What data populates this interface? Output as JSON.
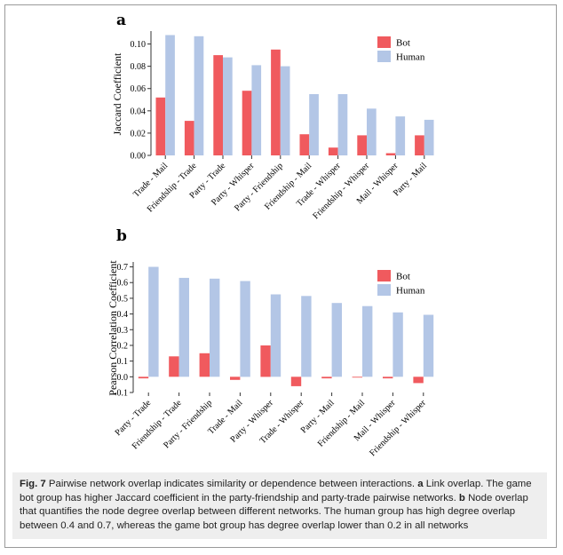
{
  "colors": {
    "bot": "#f05a5e",
    "human": "#b3c6e6"
  },
  "panels": {
    "a": "a",
    "b": "b"
  },
  "chart_data": [
    {
      "type": "bar",
      "ylabel": "Jaccard Coefficient",
      "ylim": [
        0,
        0.11
      ],
      "yticks": [
        "0.00",
        "0.02",
        "0.04",
        "0.06",
        "0.08",
        "0.10"
      ],
      "categories": [
        "Trade - Mail",
        "Friendship - Trade",
        "Party - Trade",
        "Party - Whisper",
        "Party - Friendship",
        "Friendship - Mail",
        "Trade - Whisper",
        "Friendship - Whisper",
        "Mail - Whisper",
        "Party - Mail"
      ],
      "series": [
        {
          "name": "Bot",
          "values": [
            0.052,
            0.031,
            0.09,
            0.058,
            0.095,
            0.019,
            0.007,
            0.018,
            0.002,
            0.018
          ]
        },
        {
          "name": "Human",
          "values": [
            0.108,
            0.107,
            0.088,
            0.081,
            0.08,
            0.055,
            0.055,
            0.042,
            0.035,
            0.032
          ]
        }
      ],
      "legend": "top-right"
    },
    {
      "type": "bar",
      "ylabel": "Pearson Correlation Coefficient",
      "ylim": [
        -0.1,
        0.72
      ],
      "yticks": [
        "-0.1",
        "0.0",
        "0.1",
        "0.2",
        "0.3",
        "0.4",
        "0.5",
        "0.6",
        "0.7"
      ],
      "categories": [
        "Party - Trade",
        "Friendship - Trade",
        "Party - Friendship",
        "Trade - Mail",
        "Party - Whisper",
        "Trade - Whisper",
        "Party - Mail",
        "Friendship - Mail",
        "Mail - Whisper",
        "Friendship - Whisper"
      ],
      "series": [
        {
          "name": "Bot",
          "values": [
            -0.01,
            0.13,
            0.15,
            -0.02,
            0.2,
            -0.06,
            -0.01,
            -0.005,
            -0.01,
            -0.04
          ]
        },
        {
          "name": "Human",
          "values": [
            0.7,
            0.63,
            0.625,
            0.61,
            0.525,
            0.515,
            0.47,
            0.45,
            0.41,
            0.395
          ]
        }
      ],
      "legend": "top-right"
    }
  ],
  "caption": {
    "fig": "Fig. 7",
    "lead": "Pairwise network overlap indicates similarity or dependence between interactions.",
    "a_label": "a",
    "a_text": "Link overlap. The game bot group has higher Jaccard coefficient in the party-friendship and party-trade pairwise networks.",
    "b_label": "b",
    "b_text": "Node overlap that quantifies the node degree overlap between different networks. The human group has high degree overlap between 0.4 and 0.7, whereas the game bot group has degree overlap lower than 0.2 in all networks"
  }
}
